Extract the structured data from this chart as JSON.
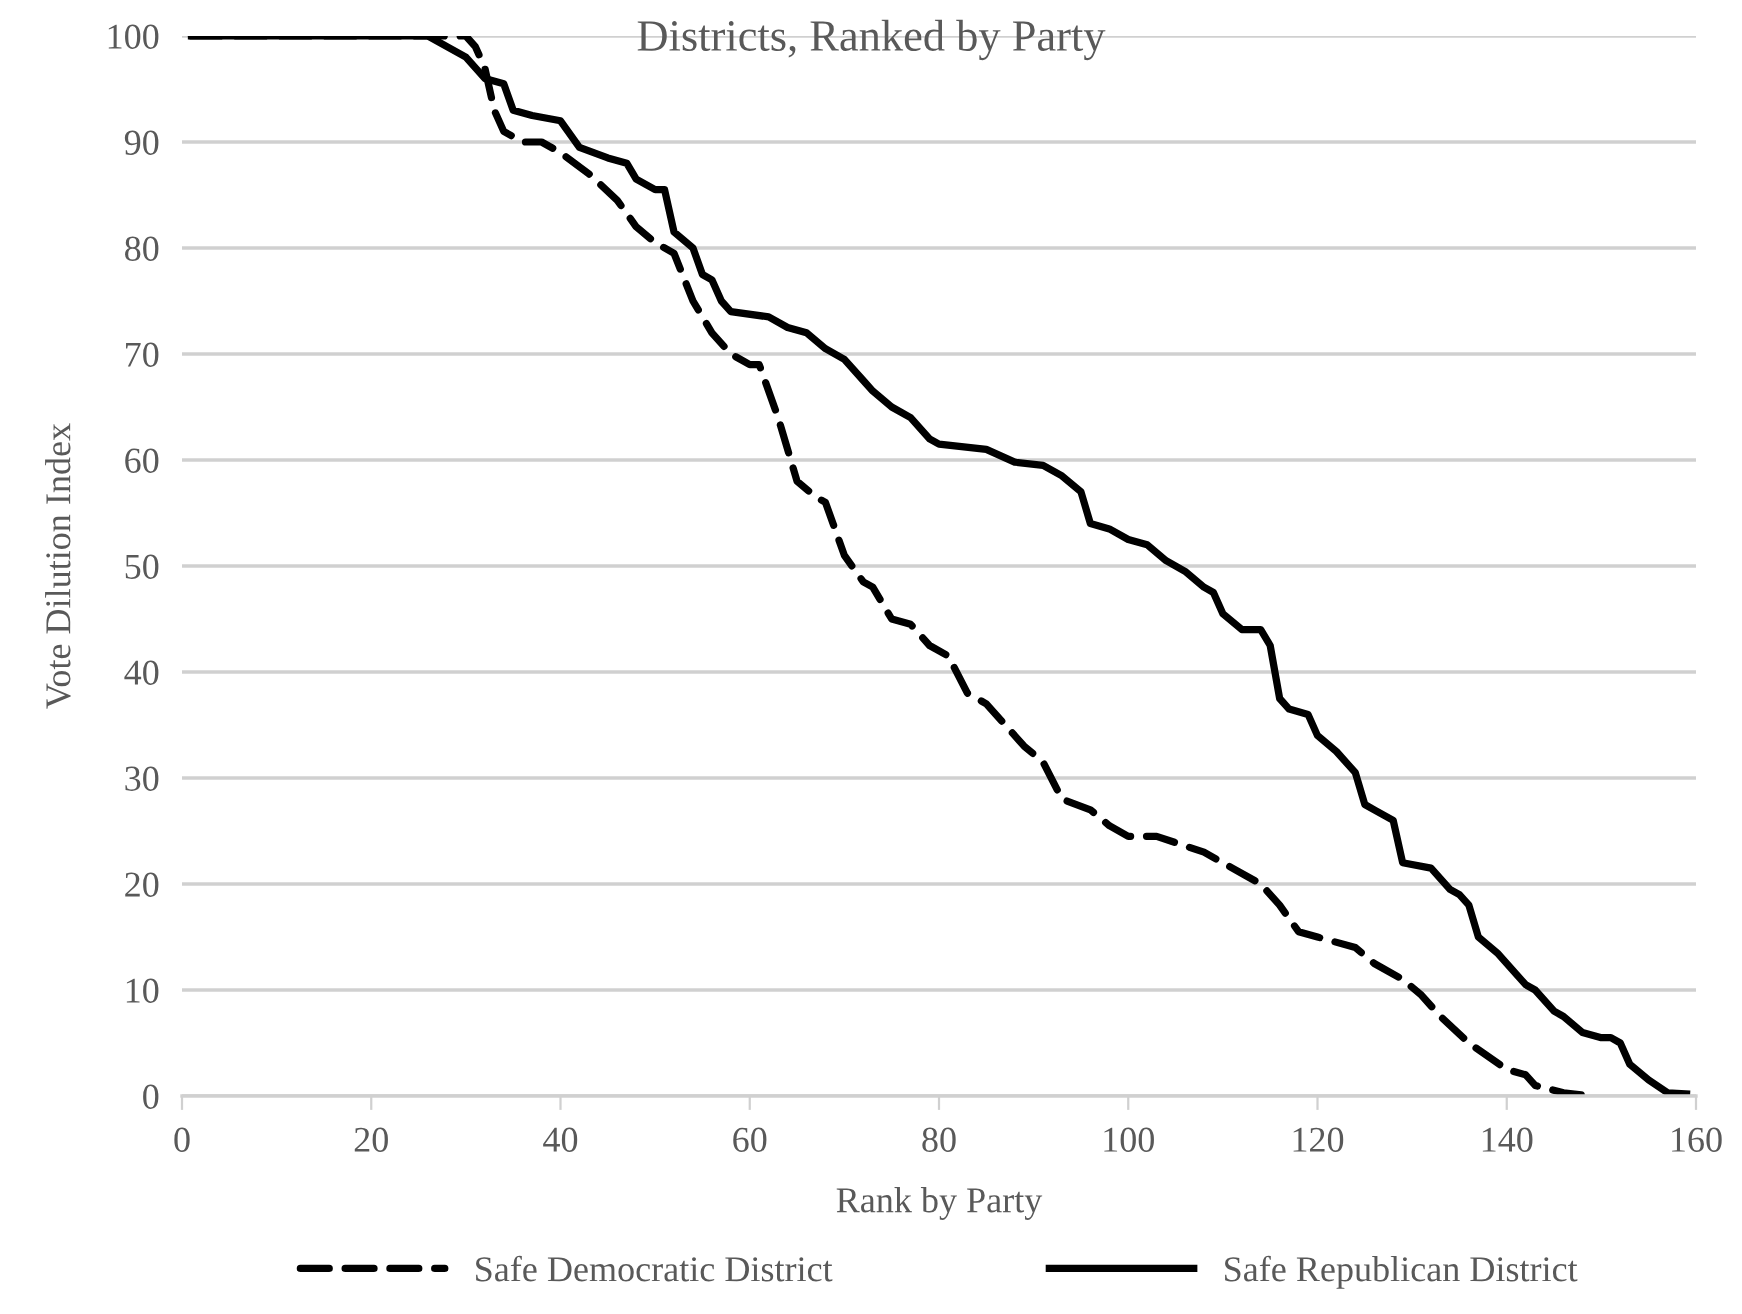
{
  "chart_data": {
    "type": "line",
    "title": "Districts, Ranked by Party",
    "xlabel": "Rank by Party",
    "ylabel": "Vote Dilution Index",
    "xlim": [
      0,
      160
    ],
    "xticks": [
      0,
      20,
      40,
      60,
      80,
      100,
      120,
      140,
      160
    ],
    "ylim": [
      0,
      100
    ],
    "yticks": [
      0,
      10,
      20,
      30,
      40,
      50,
      60,
      70,
      80,
      90,
      100
    ],
    "grid": "y",
    "legend": "bottom",
    "series": [
      {
        "name": "Safe Democratic District",
        "color": "#000000",
        "line_style": "dashed",
        "x": [
          1,
          30,
          31,
          32,
          33,
          34,
          36,
          38,
          40,
          43,
          46,
          48,
          50,
          52,
          54,
          56,
          58,
          60,
          61,
          63,
          65,
          67,
          68,
          70,
          72,
          73,
          75,
          77,
          79,
          81,
          83,
          85,
          87,
          89,
          91,
          93,
          96,
          98,
          100,
          103,
          108,
          111,
          114,
          116,
          118,
          120,
          124,
          126,
          129,
          131,
          133,
          136,
          140,
          142,
          143,
          146,
          149
        ],
        "values": [
          100,
          100,
          99,
          97,
          93,
          91,
          90,
          90,
          89,
          87,
          84.5,
          82,
          80.5,
          79.5,
          75,
          72,
          70,
          69,
          69,
          64,
          58,
          56.5,
          56,
          51,
          48.5,
          48,
          45,
          44.5,
          42.5,
          41.5,
          38,
          37,
          35,
          33,
          31.5,
          28,
          27,
          25.5,
          24.5,
          24.5,
          23,
          21.5,
          20,
          18,
          15.5,
          15,
          14,
          12.5,
          11,
          9.5,
          7.5,
          5,
          2.5,
          2,
          1,
          0.3,
          0
        ]
      },
      {
        "name": "Safe Republican District",
        "color": "#000000",
        "line_style": "solid",
        "x": [
          1,
          26,
          28,
          30,
          32,
          34,
          35,
          37,
          40,
          42,
          45,
          47,
          48,
          50,
          51,
          52,
          54,
          55,
          56,
          57,
          58,
          62,
          64,
          66,
          68,
          70,
          72,
          73,
          75,
          77,
          79,
          80,
          85,
          88,
          91,
          93,
          95,
          96,
          98,
          100,
          102,
          104,
          106,
          108,
          109,
          110,
          112,
          114,
          115,
          116,
          117,
          119,
          120,
          122,
          124,
          125,
          126,
          128,
          129,
          132,
          134,
          135,
          136,
          137,
          139,
          141,
          142,
          143,
          145,
          146,
          148,
          150,
          151,
          152,
          153,
          155,
          157,
          159
        ],
        "values": [
          100,
          100,
          99,
          98,
          96,
          95.5,
          93,
          92.5,
          92,
          89.5,
          88.5,
          88,
          86.5,
          85.5,
          85.5,
          81.5,
          80,
          77.5,
          77,
          75,
          74,
          73.5,
          72.5,
          72,
          70.5,
          69.5,
          67.5,
          66.5,
          65,
          64,
          62,
          61.5,
          61,
          59.8,
          59.5,
          58.5,
          57,
          54,
          53.5,
          52.5,
          52,
          50.5,
          49.5,
          48,
          47.5,
          45.5,
          44,
          44,
          42.5,
          37.5,
          36.5,
          36,
          34,
          32.5,
          30.5,
          27.5,
          27,
          26,
          22,
          21.5,
          19.5,
          19,
          18,
          15,
          13.5,
          11.5,
          10.5,
          10,
          8,
          7.5,
          6,
          5.5,
          5.5,
          5,
          3,
          1.5,
          0.3,
          0.2
        ]
      }
    ]
  }
}
